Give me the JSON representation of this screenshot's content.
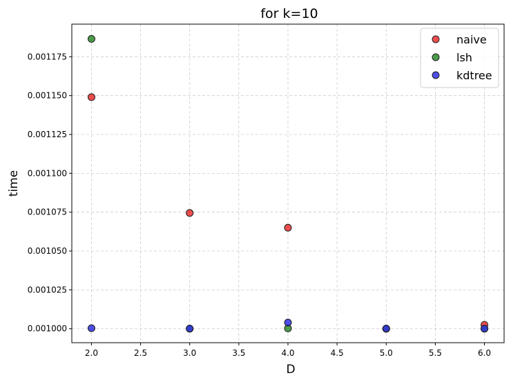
{
  "chart_data": {
    "type": "scatter",
    "title": "for k=10",
    "xlabel": "D",
    "ylabel": "time",
    "xlim": [
      1.8,
      6.2
    ],
    "ylim": [
      0.000991,
      0.001196
    ],
    "xticks": [
      2.0,
      2.5,
      3.0,
      3.5,
      4.0,
      4.5,
      5.0,
      5.5,
      6.0
    ],
    "xtick_labels": [
      "2.0",
      "2.5",
      "3.0",
      "3.5",
      "4.0",
      "4.5",
      "5.0",
      "5.5",
      "6.0"
    ],
    "yticks": [
      0.001,
      0.001025,
      0.00105,
      0.001075,
      0.0011,
      0.001125,
      0.00115,
      0.001175
    ],
    "ytick_labels": [
      "0.001000",
      "0.001025",
      "0.001050",
      "0.001075",
      "0.001100",
      "0.001125",
      "0.001150",
      "0.001175"
    ],
    "grid": true,
    "legend_position": "top-right",
    "series": [
      {
        "name": "naive",
        "color": "#e8302f",
        "x": [
          2.0,
          3.0,
          4.0,
          5.0,
          6.0
        ],
        "y": [
          0.001149,
          0.0010745,
          0.001065,
          0.001,
          0.0010025
        ]
      },
      {
        "name": "lsh",
        "color": "#2e8b2e",
        "x": [
          2.0,
          3.0,
          4.0,
          5.0,
          6.0
        ],
        "y": [
          0.0011865,
          0.001,
          0.0010002,
          0.001,
          0.001
        ]
      },
      {
        "name": "kdtree",
        "color": "#2f2fe0",
        "x": [
          2.0,
          3.0,
          4.0,
          5.0,
          6.0
        ],
        "y": [
          0.0010003,
          0.0010001,
          0.001004,
          0.0010001,
          0.0010001
        ]
      }
    ]
  }
}
